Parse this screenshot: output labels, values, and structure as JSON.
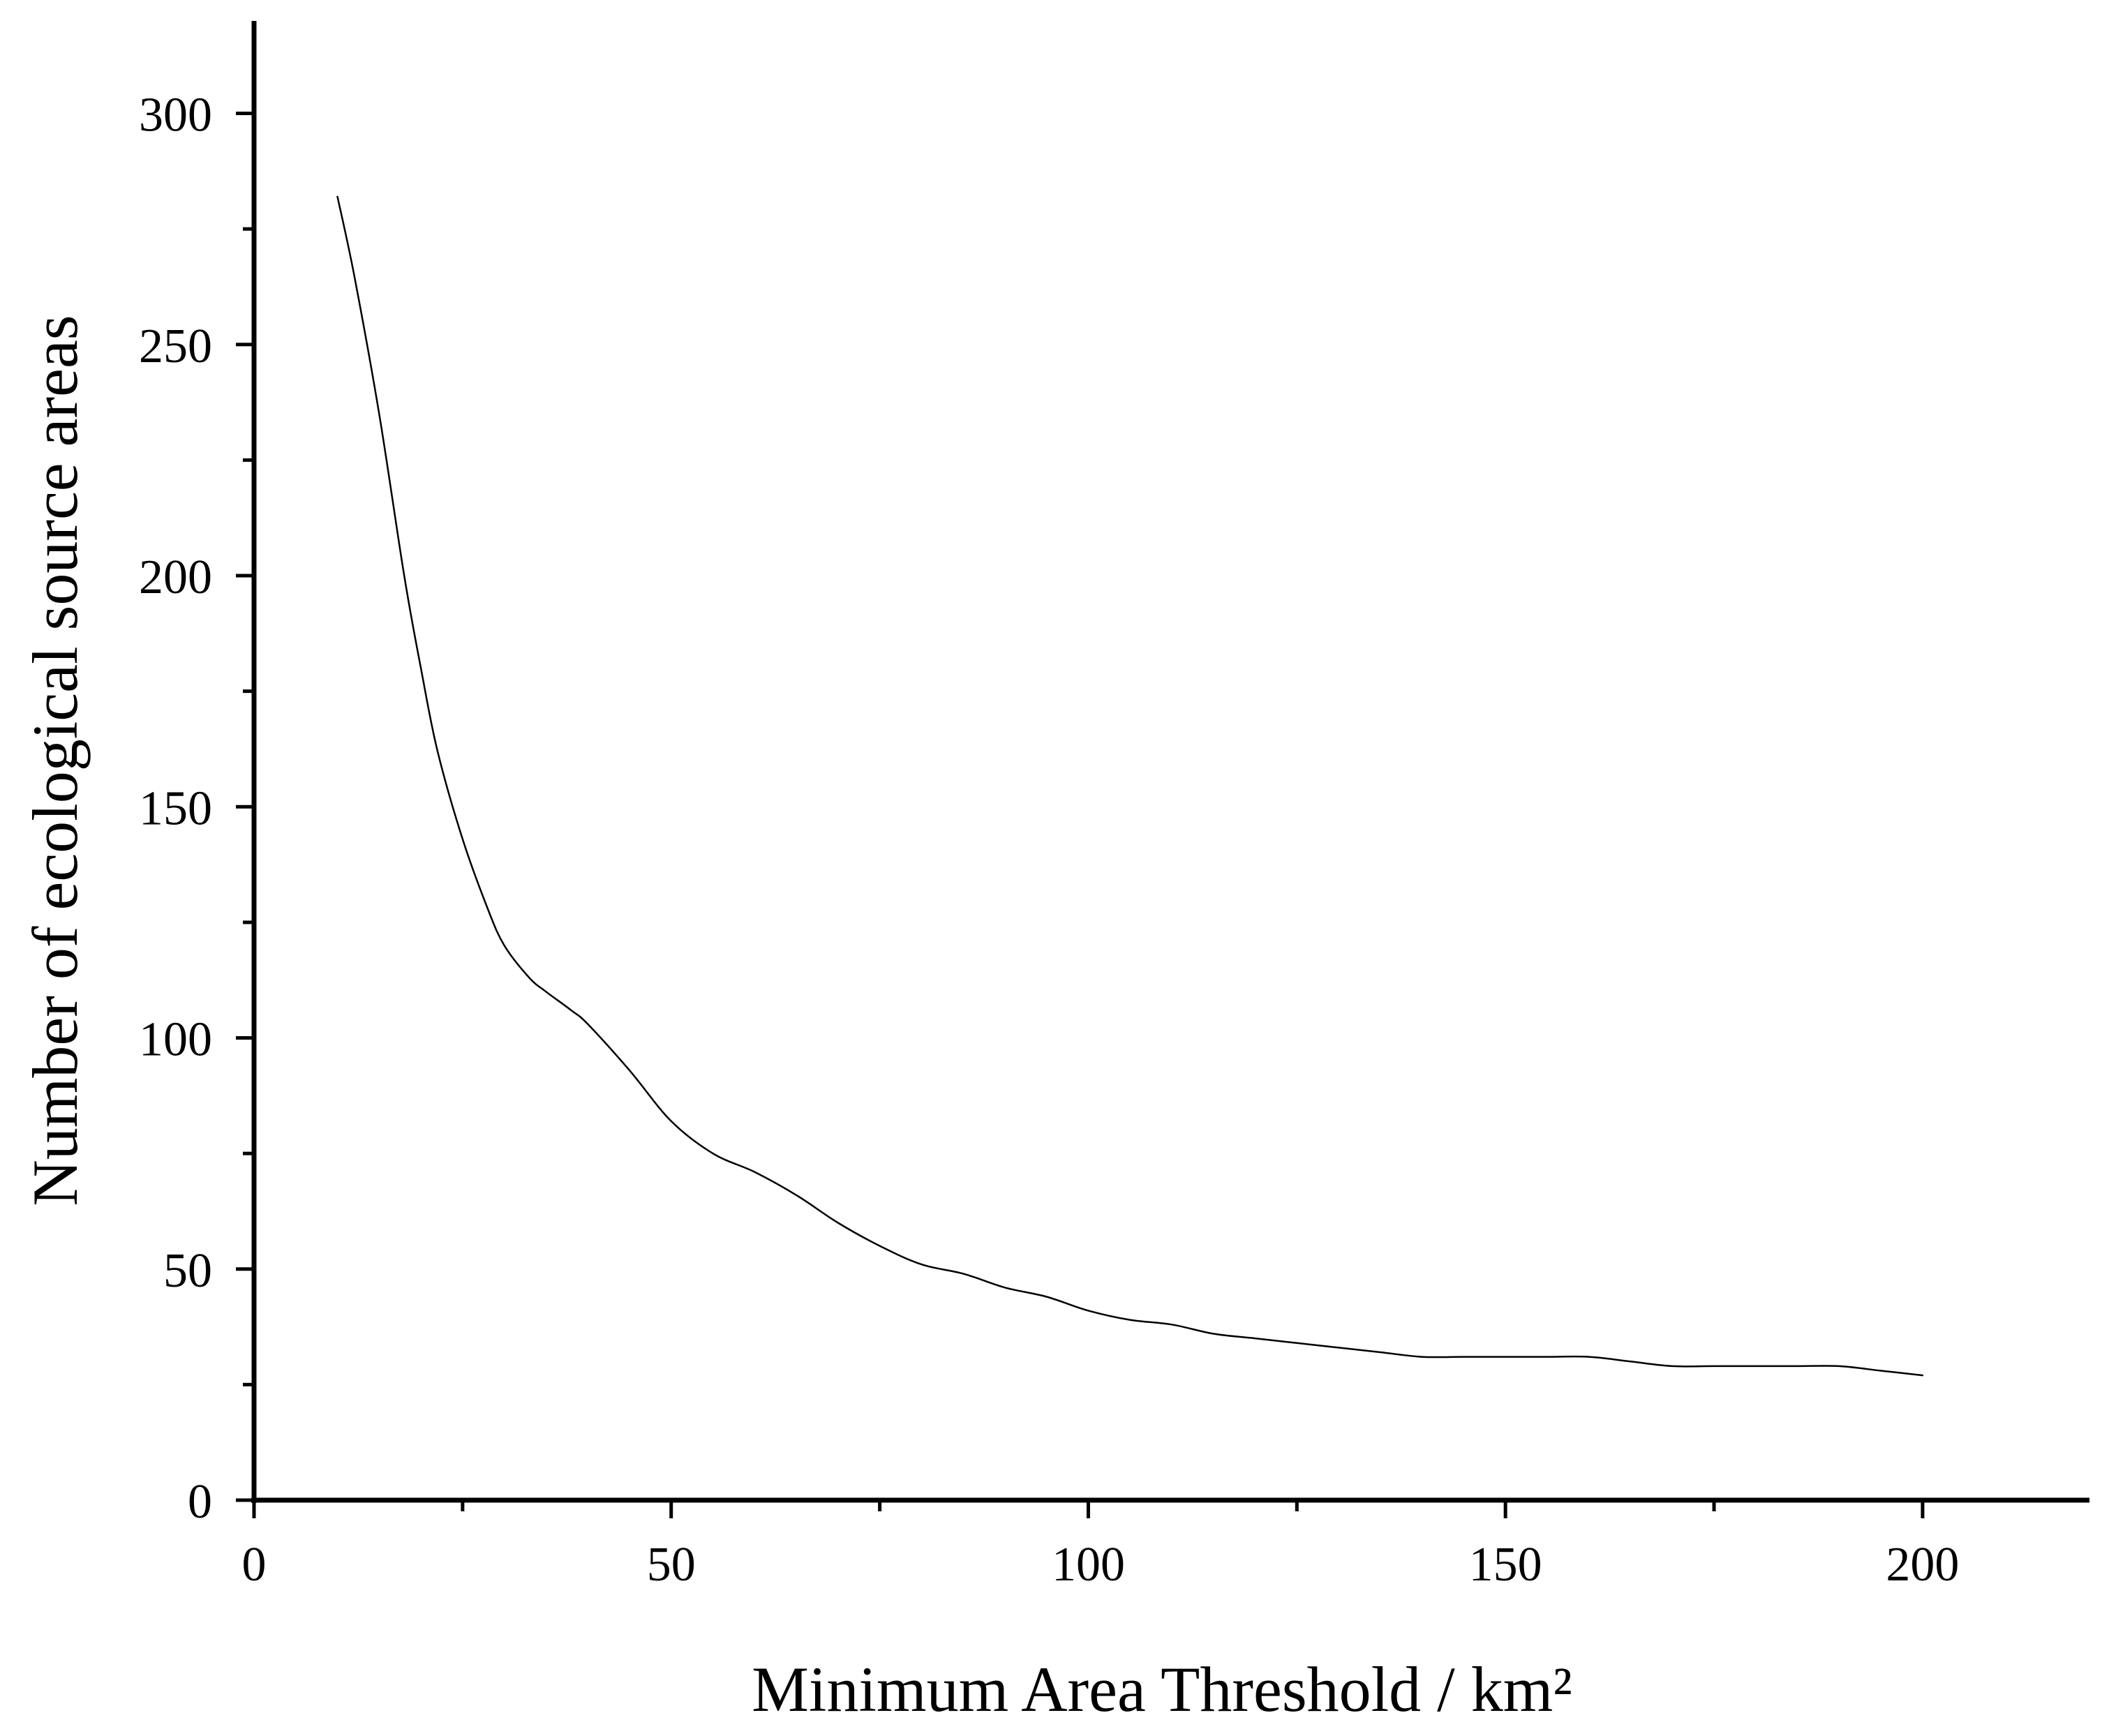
{
  "chart_data": {
    "type": "line",
    "title": "",
    "xlabel": "Minimum Area Threshold / km²",
    "ylabel": "Number of ecological source areas",
    "xlim": [
      0,
      220
    ],
    "ylim": [
      0,
      320
    ],
    "xticks": [
      0,
      50,
      100,
      150,
      200
    ],
    "yticks": [
      0,
      50,
      100,
      150,
      200,
      250,
      300
    ],
    "x_minor_step": 25,
    "y_minor_step": 25,
    "grid": false,
    "legend": "none",
    "line_color": "#000000",
    "series": [
      {
        "x": [
          10,
          12,
          15,
          18,
          20,
          22,
          25,
          28,
          30,
          33,
          35,
          38,
          40,
          45,
          50,
          55,
          60,
          65,
          70,
          75,
          80,
          85,
          90,
          95,
          100,
          105,
          110,
          115,
          120,
          125,
          130,
          135,
          140,
          145,
          150,
          155,
          160,
          165,
          170,
          175,
          180,
          185,
          190,
          195,
          200
        ],
        "values": [
          282,
          265,
          235,
          200,
          180,
          162,
          143,
          128,
          120,
          113,
          110,
          106,
          103,
          93,
          82,
          75,
          71,
          66,
          60,
          55,
          51,
          49,
          46,
          44,
          41,
          39,
          38,
          36,
          35,
          34,
          33,
          32,
          31,
          31,
          31,
          31,
          31,
          30,
          29,
          29,
          29,
          29,
          29,
          28,
          27
        ]
      }
    ]
  }
}
